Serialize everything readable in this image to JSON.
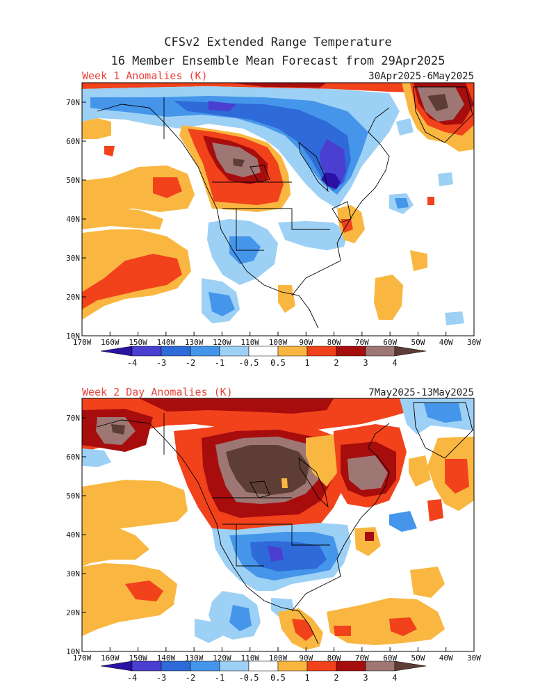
{
  "title_line1": "CFSv2 Extended Range Temperature",
  "title_line2": "16 Member Ensemble Mean Forecast from 29Apr2025",
  "colors": {
    "c_m4": "#2c12a4",
    "c_m3": "#4a3fd0",
    "c_m2": "#2e6ad8",
    "c_m1": "#4596ea",
    "c_m05": "#9dd0f5",
    "c_0": "#ffffff",
    "c_05": "#f9b741",
    "c_1": "#f1421c",
    "c_2": "#a80d0d",
    "c_3": "#9e7774",
    "c_4": "#5d3d35",
    "coast": "#000000"
  },
  "panels": [
    {
      "label": "Week 1 Anomalies (K)",
      "dates": "30Apr2025-6May2025",
      "lat_ticks": [
        "70N",
        "60N",
        "50N",
        "40N",
        "30N",
        "20N",
        "10N"
      ],
      "lon_ticks": [
        "170W",
        "160W",
        "150W",
        "140W",
        "130W",
        "120W",
        "110W",
        "100W",
        "90W",
        "80W",
        "70W",
        "60W",
        "50W",
        "40W",
        "30W"
      ]
    },
    {
      "label": "Week 2 Day Anomalies (K)",
      "dates": "7May2025-13May2025",
      "lat_ticks": [
        "70N",
        "60N",
        "50N",
        "40N",
        "30N",
        "20N",
        "10N"
      ],
      "lon_ticks": [
        "170W",
        "160W",
        "150W",
        "140W",
        "130W",
        "120W",
        "110W",
        "100W",
        "90W",
        "80W",
        "70W",
        "60W",
        "50W",
        "40W",
        "30W"
      ]
    }
  ],
  "colorbar": {
    "labels": [
      "-4",
      "-3",
      "-2",
      "-1",
      "-0.5",
      "0.5",
      "1",
      "2",
      "3",
      "4"
    ]
  }
}
